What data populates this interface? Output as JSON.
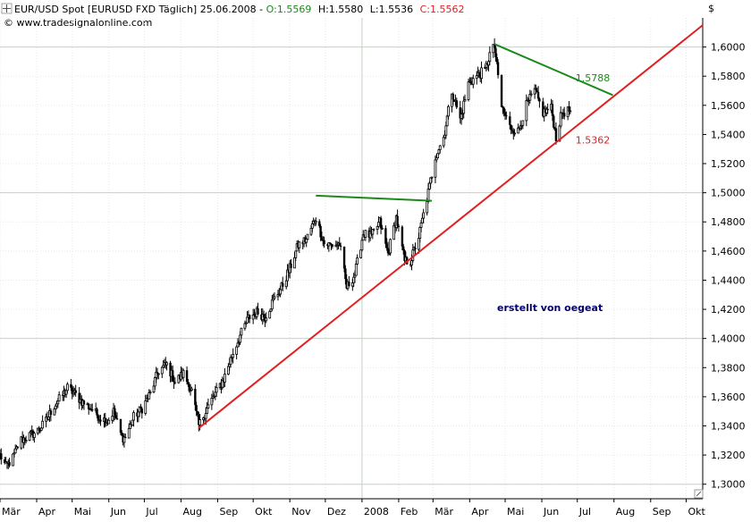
{
  "header": {
    "symbol": "EUR/USD Spot [EURUSD FXD  Täglich] 25.06.2008 - ",
    "open_label": "O:1.5569",
    "high_label": "H:1.5580",
    "low_label": "L:1.5536",
    "close_label": "C:1.5562",
    "copyright": "© www.tradesignalonline.com",
    "currency": "$"
  },
  "annotation": "erstellt von oegeat",
  "colors": {
    "background": "#ffffff",
    "grid": "#d8ddd8",
    "candles": "#000000",
    "support_line": "#e02020",
    "resistance_line": "#1a8a1a",
    "open_text": "#1a8a1a",
    "close_text": "#e02020",
    "annotation_text": "#00006e"
  },
  "chart_data": {
    "type": "line",
    "title": "EUR/USD Spot [EURUSD FXD  Täglich] 25.06.2008",
    "x_range": [
      "2007-03-01",
      "2008-10-15"
    ],
    "ylim": [
      1.29,
      1.62
    ],
    "y_ticks": [
      "1,3000",
      "1,3200",
      "1,3400",
      "1,3600",
      "1,3800",
      "1,4000",
      "1,4200",
      "1,4400",
      "1,4600",
      "1,4800",
      "1,5000",
      "1,5200",
      "1,5400",
      "1,5600",
      "1,5800",
      "1,6000"
    ],
    "x_ticks": [
      {
        "label": "Mär",
        "date": "2007-03-01"
      },
      {
        "label": "Apr",
        "date": "2007-04-01"
      },
      {
        "label": "Mai",
        "date": "2007-05-01"
      },
      {
        "label": "Jun",
        "date": "2007-06-01"
      },
      {
        "label": "Jul",
        "date": "2007-07-01"
      },
      {
        "label": "Aug",
        "date": "2007-08-01"
      },
      {
        "label": "Sep",
        "date": "2007-09-01"
      },
      {
        "label": "Okt",
        "date": "2007-10-01"
      },
      {
        "label": "Nov",
        "date": "2007-11-01"
      },
      {
        "label": "Dez",
        "date": "2007-12-01"
      },
      {
        "label": "2008",
        "date": "2008-01-01"
      },
      {
        "label": "Feb",
        "date": "2008-02-01"
      },
      {
        "label": "Mär",
        "date": "2008-03-01"
      },
      {
        "label": "Apr",
        "date": "2008-04-01"
      },
      {
        "label": "Mai",
        "date": "2008-05-01"
      },
      {
        "label": "Jun",
        "date": "2008-06-01"
      },
      {
        "label": "Jul",
        "date": "2008-07-01"
      },
      {
        "label": "Aug",
        "date": "2008-08-01"
      },
      {
        "label": "Sep",
        "date": "2008-09-01"
      },
      {
        "label": "Okt",
        "date": "2008-10-01"
      }
    ],
    "major_grid": {
      "dates": [
        "2008-01-01"
      ],
      "values": [
        1.3,
        1.4,
        1.5,
        1.6
      ]
    },
    "series": [
      {
        "type": "candlestick",
        "points": [
          {
            "date": "2007-03-01",
            "close": 1.32
          },
          {
            "date": "2007-03-06",
            "close": 1.312
          },
          {
            "date": "2007-03-12",
            "close": 1.318
          },
          {
            "date": "2007-03-18",
            "close": 1.33
          },
          {
            "date": "2007-03-25",
            "close": 1.333
          },
          {
            "date": "2007-04-01",
            "close": 1.336
          },
          {
            "date": "2007-04-08",
            "close": 1.342
          },
          {
            "date": "2007-04-15",
            "close": 1.353
          },
          {
            "date": "2007-04-22",
            "close": 1.36
          },
          {
            "date": "2007-04-27",
            "close": 1.366
          },
          {
            "date": "2007-05-03",
            "close": 1.362
          },
          {
            "date": "2007-05-10",
            "close": 1.356
          },
          {
            "date": "2007-05-17",
            "close": 1.352
          },
          {
            "date": "2007-05-24",
            "close": 1.346
          },
          {
            "date": "2007-05-31",
            "close": 1.343
          },
          {
            "date": "2007-06-05",
            "close": 1.35
          },
          {
            "date": "2007-06-12",
            "close": 1.332
          },
          {
            "date": "2007-06-15",
            "close": 1.332
          },
          {
            "date": "2007-06-22",
            "close": 1.346
          },
          {
            "date": "2007-06-29",
            "close": 1.352
          },
          {
            "date": "2007-07-06",
            "close": 1.362
          },
          {
            "date": "2007-07-13",
            "close": 1.378
          },
          {
            "date": "2007-07-20",
            "close": 1.382
          },
          {
            "date": "2007-07-27",
            "close": 1.37
          },
          {
            "date": "2007-08-03",
            "close": 1.376
          },
          {
            "date": "2007-08-10",
            "close": 1.364
          },
          {
            "date": "2007-08-16",
            "close": 1.34
          },
          {
            "date": "2007-08-23",
            "close": 1.352
          },
          {
            "date": "2007-08-30",
            "close": 1.362
          },
          {
            "date": "2007-09-06",
            "close": 1.372
          },
          {
            "date": "2007-09-13",
            "close": 1.388
          },
          {
            "date": "2007-09-20",
            "close": 1.402
          },
          {
            "date": "2007-09-27",
            "close": 1.414
          },
          {
            "date": "2007-10-04",
            "close": 1.418
          },
          {
            "date": "2007-10-11",
            "close": 1.415
          },
          {
            "date": "2007-10-18",
            "close": 1.426
          },
          {
            "date": "2007-10-25",
            "close": 1.435
          },
          {
            "date": "2007-11-01",
            "close": 1.448
          },
          {
            "date": "2007-11-08",
            "close": 1.464
          },
          {
            "date": "2007-11-15",
            "close": 1.468
          },
          {
            "date": "2007-11-23",
            "close": 1.483
          },
          {
            "date": "2007-11-30",
            "close": 1.465
          },
          {
            "date": "2007-12-06",
            "close": 1.464
          },
          {
            "date": "2007-12-13",
            "close": 1.465
          },
          {
            "date": "2007-12-19",
            "close": 1.435
          },
          {
            "date": "2007-12-26",
            "close": 1.444
          },
          {
            "date": "2008-01-02",
            "close": 1.472
          },
          {
            "date": "2008-01-09",
            "close": 1.47
          },
          {
            "date": "2008-01-16",
            "close": 1.48
          },
          {
            "date": "2008-01-23",
            "close": 1.458
          },
          {
            "date": "2008-01-30",
            "close": 1.483
          },
          {
            "date": "2008-02-06",
            "close": 1.453
          },
          {
            "date": "2008-02-11",
            "close": 1.453
          },
          {
            "date": "2008-02-18",
            "close": 1.47
          },
          {
            "date": "2008-02-25",
            "close": 1.496
          },
          {
            "date": "2008-03-03",
            "close": 1.525
          },
          {
            "date": "2008-03-10",
            "close": 1.538
          },
          {
            "date": "2008-03-17",
            "close": 1.57
          },
          {
            "date": "2008-03-24",
            "close": 1.55
          },
          {
            "date": "2008-03-31",
            "close": 1.575
          },
          {
            "date": "2008-04-07",
            "close": 1.58
          },
          {
            "date": "2008-04-14",
            "close": 1.584
          },
          {
            "date": "2008-04-18",
            "close": 1.595
          },
          {
            "date": "2008-04-22",
            "close": 1.6
          },
          {
            "date": "2008-04-28",
            "close": 1.559
          },
          {
            "date": "2008-05-05",
            "close": 1.545
          },
          {
            "date": "2008-05-12",
            "close": 1.542
          },
          {
            "date": "2008-05-19",
            "close": 1.56
          },
          {
            "date": "2008-05-26",
            "close": 1.57
          },
          {
            "date": "2008-06-02",
            "close": 1.555
          },
          {
            "date": "2008-06-09",
            "close": 1.558
          },
          {
            "date": "2008-06-13",
            "close": 1.538
          },
          {
            "date": "2008-06-18",
            "close": 1.555
          },
          {
            "date": "2008-06-25",
            "close": 1.5562
          }
        ]
      },
      {
        "type": "trendline",
        "color": "#e02020",
        "points": [
          {
            "date": "2007-08-16",
            "value": 1.3385
          },
          {
            "date": "2008-10-15",
            "value": 1.615
          }
        ]
      },
      {
        "type": "trendline",
        "color": "#1a8a1a",
        "points": [
          {
            "date": "2008-04-22",
            "value": 1.602
          },
          {
            "date": "2008-07-31",
            "value": 1.567
          }
        ]
      },
      {
        "type": "trendline",
        "color": "#1a8a1a",
        "points": [
          {
            "date": "2007-11-23",
            "value": 1.498
          },
          {
            "date": "2008-02-29",
            "value": 1.4945
          }
        ]
      }
    ],
    "level_labels": [
      {
        "text": "1.5788",
        "date": "2008-06-25",
        "value": 1.5788,
        "color": "#1a8a1a"
      },
      {
        "text": "1.5362",
        "date": "2008-06-25",
        "value": 1.5362,
        "color": "#e02020"
      }
    ],
    "grid": true,
    "legend": "none"
  }
}
